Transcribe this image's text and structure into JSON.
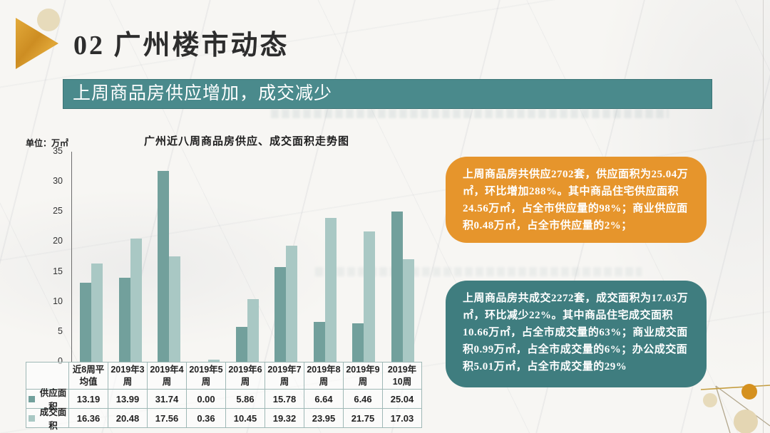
{
  "header": {
    "title": "02 广州楼市动态"
  },
  "banner": {
    "text": "上周商品房供应增加，成交减少"
  },
  "chart": {
    "unit_label": "单位：万㎡",
    "title": "广州近八周商品房供应、成交面积走势图"
  },
  "chart_data": {
    "type": "bar",
    "title": "广州近八周商品房供应、成交面积走势图",
    "unit": "万㎡",
    "categories": [
      "近8周平均值",
      "2019年3周",
      "2019年4周",
      "2019年5周",
      "2019年6周",
      "2019年7周",
      "2019年8周",
      "2019年9周",
      "2019年10周"
    ],
    "categories_lines": [
      [
        "近8周平",
        "均值"
      ],
      [
        "2019年3",
        "周"
      ],
      [
        "2019年4",
        "周"
      ],
      [
        "2019年5",
        "周"
      ],
      [
        "2019年6",
        "周"
      ],
      [
        "2019年7",
        "周"
      ],
      [
        "2019年8",
        "周"
      ],
      [
        "2019年9",
        "周"
      ],
      [
        "2019年",
        "10周"
      ]
    ],
    "series": [
      {
        "name": "供应面积",
        "color": "#72a09c",
        "values": [
          13.19,
          13.99,
          31.74,
          0.0,
          5.86,
          15.78,
          6.64,
          6.46,
          25.04
        ]
      },
      {
        "name": "成交面积",
        "color": "#a9c8c4",
        "values": [
          16.36,
          20.48,
          17.56,
          0.36,
          10.45,
          19.32,
          23.95,
          21.75,
          17.03
        ]
      }
    ],
    "ylim": [
      0,
      35
    ],
    "ytick_step": 5,
    "grid": false,
    "legend_position": "table-rows"
  },
  "callouts": {
    "supply": {
      "color": "#e6952c",
      "text": "上周商品房共供应2702套，供应面积为25.04万㎡，环比增加288%。其中商品住宅供应面积24.56万㎡，占全市供应量的98%；商业供应面积0.48万㎡，占全市供应量的2%；"
    },
    "deal": {
      "color": "#3f7d7f",
      "text": "上周商品房共成交2272套，成交面积为17.03万㎡，环比减少22%。其中商品住宅成交面积10.66万㎡，占全市成交量的63%；商业成交面积0.99万㎡，占全市成交量的6%；办公成交面积5.01万㎡，占全市成交量的29%"
    }
  },
  "colors": {
    "banner": "#4a8a8c",
    "bar_supply": "#72a09c",
    "bar_deal": "#a9c8c4",
    "gold": "#d3952b",
    "beige": "#e7dbbb"
  }
}
